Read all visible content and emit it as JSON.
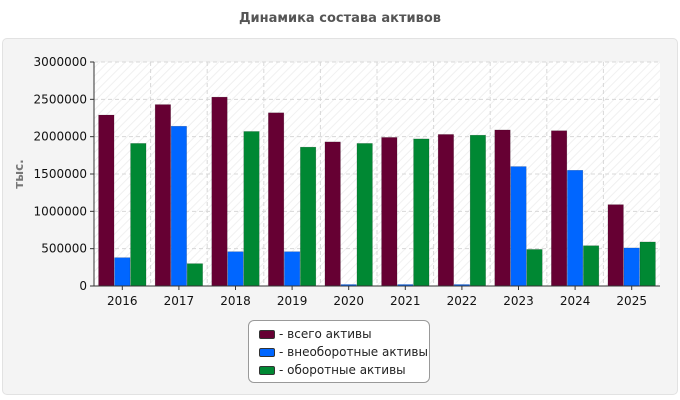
{
  "header": {
    "title": "Динамика состава активов"
  },
  "chart_data": {
    "type": "bar",
    "title": "Динамика состава активов",
    "xlabel": "",
    "ylabel": "тыс.",
    "ylim": [
      0,
      3000000
    ],
    "yticks": [
      0,
      500000,
      1000000,
      1500000,
      2000000,
      2500000,
      3000000
    ],
    "categories": [
      "2016",
      "2017",
      "2018",
      "2019",
      "2020",
      "2021",
      "2022",
      "2023",
      "2024",
      "2025"
    ],
    "grid": true,
    "legend_position": "bottom",
    "series": [
      {
        "name": "- всего активы",
        "color": "#660033",
        "values": [
          2290000,
          2430000,
          2530000,
          2320000,
          1930000,
          1990000,
          2030000,
          2090000,
          2080000,
          1090000
        ]
      },
      {
        "name": "- внеоборотные активы",
        "color": "#0066ff",
        "values": [
          380000,
          2140000,
          460000,
          460000,
          20000,
          20000,
          20000,
          1600000,
          1550000,
          510000
        ]
      },
      {
        "name": "- оборотные активы",
        "color": "#008833",
        "values": [
          1910000,
          300000,
          2070000,
          1860000,
          1910000,
          1970000,
          2020000,
          490000,
          540000,
          590000
        ]
      }
    ]
  }
}
